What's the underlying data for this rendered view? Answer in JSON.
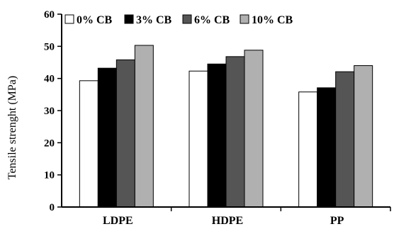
{
  "chart_data": {
    "type": "bar",
    "categories": [
      "LDPE",
      "HDPE",
      "PP"
    ],
    "series": [
      {
        "name": "0% CB",
        "values": [
          39.3,
          42.3,
          35.8
        ],
        "color": "#ffffff"
      },
      {
        "name": "3% CB",
        "values": [
          43.2,
          44.5,
          37.1
        ],
        "color": "#000000"
      },
      {
        "name": "6% CB",
        "values": [
          45.8,
          46.8,
          42.1
        ],
        "color": "#555555"
      },
      {
        "name": "10% CB",
        "values": [
          50.3,
          48.8,
          44.0
        ],
        "color": "#b0b0b0"
      }
    ],
    "xlabel": "",
    "ylabel": "Tensile strenght (MPa)",
    "ylim": [
      0,
      60
    ],
    "yticks": [
      0,
      10,
      20,
      30,
      40,
      50,
      60
    ],
    "legend_position": "top",
    "grid": false
  }
}
